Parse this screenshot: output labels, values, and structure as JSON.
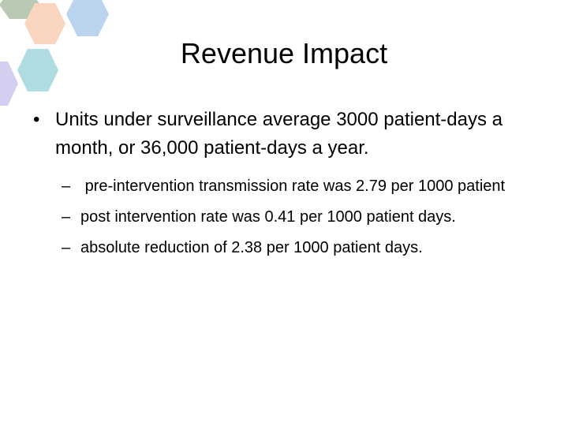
{
  "slide": {
    "title": "Revenue Impact",
    "bullets": [
      {
        "marker": "•",
        "text": "Units under surveillance average 3000 patient-days a month, or 36,000 patient-days a year.",
        "sub_items": [
          {
            "marker": "–",
            "text": " pre-intervention transmission rate was 2.79 per 1000 patient"
          },
          {
            "marker": "–",
            "text": "post intervention rate was 0.41 per 1000 patient days."
          },
          {
            "marker": "–",
            "text": "absolute reduction of 2.38 per 1000 patient days."
          }
        ]
      }
    ]
  },
  "colors": {
    "hexagon_gray_green": "#b9c9b4",
    "hexagon_peach": "#fbd6bf",
    "hexagon_light_blue": "#bad3ef",
    "hexagon_teal": "#aedce0",
    "hexagon_lavender": "#d2cff0"
  }
}
